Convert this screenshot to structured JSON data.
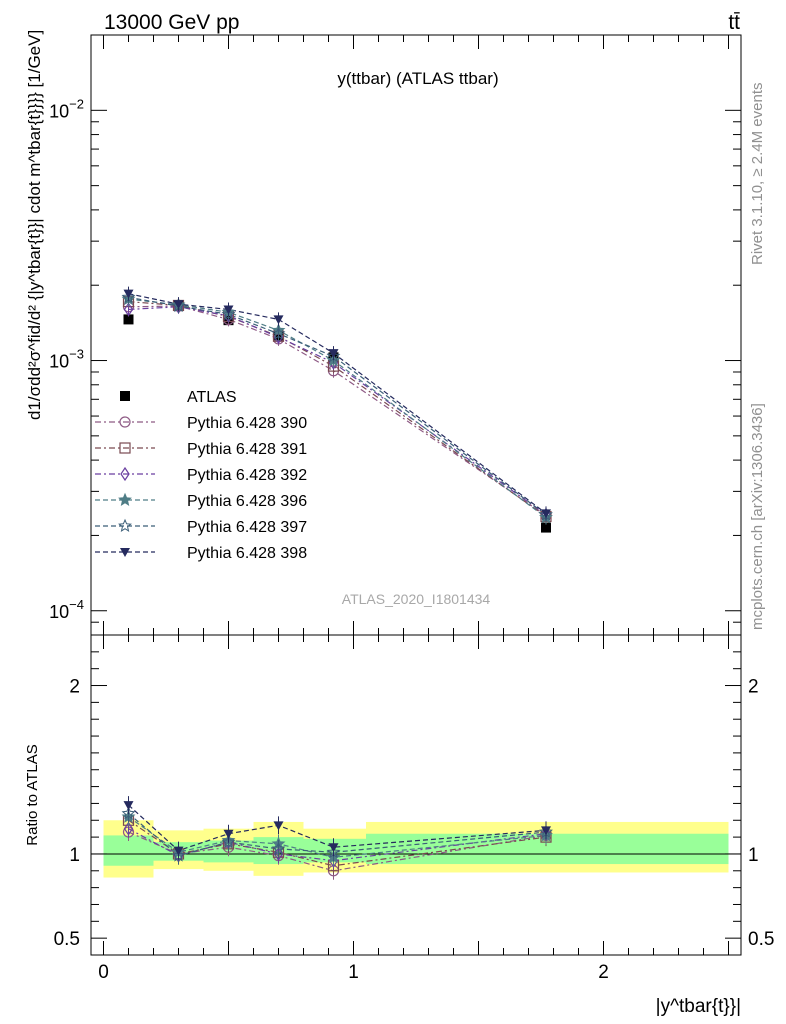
{
  "header": {
    "left": "13000 GeV pp",
    "right": "tt̄"
  },
  "side_labels": {
    "top": "Rivet 3.1.10, ≥ 2.4M events",
    "bottom": "mcplots.cern.ch [arXiv:1306.3436]"
  },
  "chart_data": [
    {
      "type": "scatter",
      "panel": "main",
      "title": "y(ttbar) (ATLAS ttbar)",
      "watermark": "ATLAS_2020_I1801434",
      "ylabel": "d1/σdd²σ^fid/d² {|y^tbar{t}}| cdot m^tbar{t}}}} [1/GeV]",
      "yscale": "log",
      "ylim": [
        8e-05,
        0.02
      ],
      "yticks": [
        {
          "value": 0.01,
          "base": "10",
          "exp": "−2"
        },
        {
          "value": 0.001,
          "base": "10",
          "exp": "−3"
        },
        {
          "value": 0.0001,
          "base": "10",
          "exp": "−4"
        }
      ],
      "xlim": [
        -0.05,
        2.55
      ],
      "x": [
        0.1,
        0.3,
        0.5,
        0.7,
        0.92,
        1.77
      ],
      "legend_position": "middle-left",
      "series": [
        {
          "name": "ATLAS",
          "marker": "square-filled",
          "color": "#000000",
          "dash": "none",
          "values": [
            0.00146,
            0.00166,
            0.00145,
            0.00126,
            0.00103,
            0.000215
          ]
        },
        {
          "name": "Pythia 6.428 390",
          "marker": "circle-open",
          "color": "#8e5a85",
          "dash": "6,3,2,3",
          "values": [
            0.00164,
            0.00165,
            0.00146,
            0.00122,
            0.00091,
            0.00024
          ]
        },
        {
          "name": "Pythia 6.428 391",
          "marker": "square-open",
          "color": "#7a4a52",
          "dash": "6,3,2,3",
          "values": [
            0.00172,
            0.00166,
            0.0015,
            0.00125,
            0.00095,
            0.000238
          ]
        },
        {
          "name": "Pythia 6.428 392",
          "marker": "diamond-open",
          "color": "#6a3fa0",
          "dash": "6,3,2,3",
          "values": [
            0.0016,
            0.00164,
            0.00151,
            0.00124,
            0.00098,
            0.000242
          ]
        },
        {
          "name": "Pythia 6.428 396",
          "marker": "star-filled",
          "color": "#4f7d86",
          "dash": "5,3",
          "values": [
            0.00176,
            0.00167,
            0.00156,
            0.00132,
            0.001,
            0.000236
          ]
        },
        {
          "name": "Pythia 6.428 397",
          "marker": "star-open",
          "color": "#3b5e78",
          "dash": "5,3",
          "values": [
            0.00179,
            0.00165,
            0.00153,
            0.00128,
            0.00104,
            0.000242
          ]
        },
        {
          "name": "Pythia 6.428 398",
          "marker": "triangle-down-filled",
          "color": "#252a5e",
          "dash": "5,3",
          "values": [
            0.00185,
            0.00168,
            0.0016,
            0.00146,
            0.00107,
            0.000245
          ]
        }
      ]
    },
    {
      "type": "scatter",
      "panel": "ratio",
      "ylabel": "Ratio to ATLAS",
      "xlabel": "|y^tbar{t}}|",
      "ylim": [
        0.4,
        2.3
      ],
      "yticks": [
        "0.5",
        "1",
        "2"
      ],
      "xticks": [
        "0",
        "1",
        "2"
      ],
      "bands": [
        {
          "xmin": 0.0,
          "xmax": 0.2,
          "inner": [
            0.93,
            1.11
          ],
          "outer": [
            0.86,
            1.2
          ]
        },
        {
          "xmin": 0.2,
          "xmax": 0.4,
          "inner": [
            0.96,
            1.07
          ],
          "outer": [
            0.91,
            1.14
          ]
        },
        {
          "xmin": 0.4,
          "xmax": 0.6,
          "inner": [
            0.95,
            1.08
          ],
          "outer": [
            0.9,
            1.15
          ]
        },
        {
          "xmin": 0.6,
          "xmax": 0.8,
          "inner": [
            0.94,
            1.1
          ],
          "outer": [
            0.87,
            1.19
          ]
        },
        {
          "xmin": 0.8,
          "xmax": 1.05,
          "inner": [
            0.95,
            1.09
          ],
          "outer": [
            0.89,
            1.15
          ]
        },
        {
          "xmin": 1.05,
          "xmax": 2.5,
          "inner": [
            0.94,
            1.12
          ],
          "outer": [
            0.89,
            1.19
          ]
        }
      ],
      "series": [
        {
          "name": "Pythia 6.428 390",
          "values": [
            1.13,
            1.0,
            1.04,
            0.99,
            0.9,
            1.11
          ]
        },
        {
          "name": "Pythia 6.428 391",
          "values": [
            1.2,
            1.0,
            1.06,
            1.01,
            0.93,
            1.1
          ]
        },
        {
          "name": "Pythia 6.428 392",
          "values": [
            1.15,
            0.99,
            1.07,
            1.0,
            0.96,
            1.12
          ]
        },
        {
          "name": "Pythia 6.428 396",
          "values": [
            1.22,
            1.01,
            1.08,
            1.06,
            0.98,
            1.11
          ]
        },
        {
          "name": "Pythia 6.428 397",
          "values": [
            1.24,
            0.99,
            1.07,
            1.03,
            1.01,
            1.13
          ]
        },
        {
          "name": "Pythia 6.428 398",
          "values": [
            1.29,
            1.02,
            1.12,
            1.17,
            1.04,
            1.14
          ]
        }
      ]
    }
  ]
}
